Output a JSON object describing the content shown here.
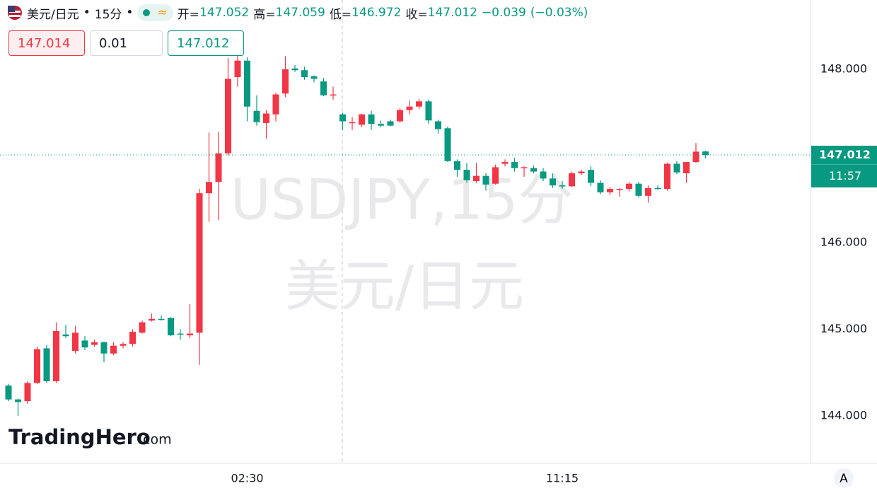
{
  "header": {
    "symbol": "美元/日元",
    "separator": "•",
    "interval": "15分",
    "approx": "≈",
    "ohlc_labels": [
      "开=",
      "高=",
      "低=",
      "收="
    ],
    "change": "−0.039",
    "change_pct": "(−0.03%)",
    "bid": "147.014",
    "quantity": "0.01",
    "watermark_symbol": "USDJPY,15分",
    "watermark_name": "美元/日元",
    "countdown": "11:57",
    "logo": "TradingHero",
    "logo_suffix": ".com",
    "scale_button": "A"
  },
  "chart_data": {
    "type": "candlestick",
    "up_color": "#f23645",
    "down_color": "#089981",
    "categories": [
      null,
      null,
      null,
      null,
      null,
      null,
      null,
      null,
      null,
      null,
      null,
      null,
      null,
      null,
      null,
      null,
      null,
      null,
      null,
      null,
      null,
      null,
      null,
      null,
      null,
      "02:30",
      null,
      null,
      null,
      null,
      null,
      null,
      null,
      null,
      null,
      null,
      null,
      null,
      null,
      null,
      null,
      null,
      null,
      null,
      null,
      null,
      null,
      null,
      null,
      null,
      null,
      null,
      null,
      null,
      null,
      null,
      null,
      null,
      "11:15",
      null,
      null,
      null,
      null,
      null,
      null,
      null,
      null,
      null,
      null,
      null,
      null,
      null,
      null,
      null
    ],
    "open": [
      144.35,
      144.19,
      144.17,
      144.38,
      144.78,
      144.4,
      144.94,
      144.75,
      144.87,
      144.82,
      144.85,
      144.72,
      144.81,
      144.83,
      144.96,
      145.1,
      145.12,
      145.13,
      144.95,
      144.93,
      144.96,
      146.57,
      146.7,
      147.03,
      147.91,
      148.1,
      147.52,
      147.38,
      147.48,
      147.72,
      148.01,
      147.99,
      147.92,
      147.86,
      147.7,
      147.48,
      147.38,
      147.36,
      147.48,
      147.37,
      147.4,
      147.4,
      147.53,
      147.57,
      147.63,
      147.4,
      147.32,
      146.94,
      146.84,
      146.71,
      146.77,
      146.68,
      146.91,
      146.93,
      146.86,
      146.86,
      146.82,
      146.74,
      146.66,
      146.65,
      146.8,
      146.84,
      146.69,
      146.58,
      146.62,
      146.62,
      146.68,
      146.54,
      146.63,
      146.62,
      146.91,
      146.8,
      146.93,
      147.052
    ],
    "high": [
      144.37,
      144.2,
      144.4,
      144.8,
      144.82,
      145.08,
      145.05,
      145.04,
      144.92,
      144.88,
      144.86,
      144.85,
      144.85,
      145.0,
      145.1,
      145.18,
      145.16,
      145.14,
      145.0,
      145.29,
      146.62,
      147.27,
      147.28,
      148.13,
      148.18,
      148.14,
      147.7,
      147.53,
      147.73,
      148.15,
      148.05,
      148.03,
      147.93,
      147.9,
      147.8,
      147.5,
      147.45,
      147.49,
      147.52,
      147.41,
      147.42,
      147.55,
      147.64,
      147.66,
      147.65,
      147.42,
      147.34,
      146.96,
      146.92,
      146.92,
      146.8,
      146.9,
      146.96,
      146.98,
      146.88,
      146.89,
      146.86,
      146.8,
      146.71,
      146.82,
      146.84,
      146.88,
      146.72,
      146.64,
      146.63,
      146.7,
      146.7,
      146.66,
      146.66,
      146.92,
      146.94,
      146.93,
      147.15,
      147.059
    ],
    "low": [
      144.17,
      144.0,
      144.14,
      144.37,
      144.38,
      144.38,
      144.9,
      144.72,
      144.76,
      144.8,
      144.62,
      144.7,
      144.78,
      144.8,
      144.95,
      145.09,
      145.1,
      144.92,
      144.88,
      144.9,
      144.59,
      146.24,
      146.26,
      147.0,
      147.8,
      147.4,
      147.35,
      147.2,
      147.4,
      147.68,
      147.97,
      147.88,
      147.85,
      147.69,
      147.65,
      147.3,
      147.3,
      147.33,
      147.3,
      147.33,
      147.34,
      147.38,
      147.48,
      147.54,
      147.37,
      147.26,
      146.93,
      146.76,
      146.69,
      146.69,
      146.6,
      146.67,
      146.88,
      146.82,
      146.76,
      146.8,
      146.71,
      146.63,
      146.62,
      146.64,
      146.78,
      146.65,
      146.56,
      146.55,
      146.53,
      146.59,
      146.52,
      146.46,
      146.61,
      146.6,
      146.79,
      146.69,
      146.92,
      146.972
    ],
    "close": [
      144.19,
      144.16,
      144.38,
      144.77,
      144.4,
      144.98,
      144.92,
      144.96,
      144.79,
      144.85,
      144.72,
      144.81,
      144.83,
      144.97,
      145.08,
      145.12,
      145.11,
      144.93,
      144.94,
      144.95,
      146.57,
      146.7,
      147.03,
      147.89,
      148.1,
      147.57,
      147.39,
      147.49,
      147.71,
      148.0,
      147.99,
      147.91,
      147.89,
      147.7,
      147.71,
      147.4,
      147.39,
      147.48,
      147.37,
      147.35,
      147.35,
      147.53,
      147.57,
      147.63,
      147.41,
      147.31,
      146.94,
      146.84,
      146.72,
      146.77,
      146.67,
      146.87,
      146.93,
      146.86,
      146.87,
      146.82,
      146.74,
      146.66,
      146.65,
      146.8,
      146.82,
      146.69,
      146.58,
      146.62,
      146.62,
      146.68,
      146.54,
      146.63,
      146.62,
      146.91,
      146.81,
      146.93,
      147.05,
      147.012
    ],
    "ylim": [
      143.453,
      148.8
    ],
    "yticks": [
      {
        "value": 144,
        "label": "144.000"
      },
      {
        "value": 145,
        "label": "145.000"
      },
      {
        "value": 146,
        "label": "146.000"
      },
      {
        "value": 148,
        "label": "148.000"
      }
    ],
    "grid": false
  }
}
